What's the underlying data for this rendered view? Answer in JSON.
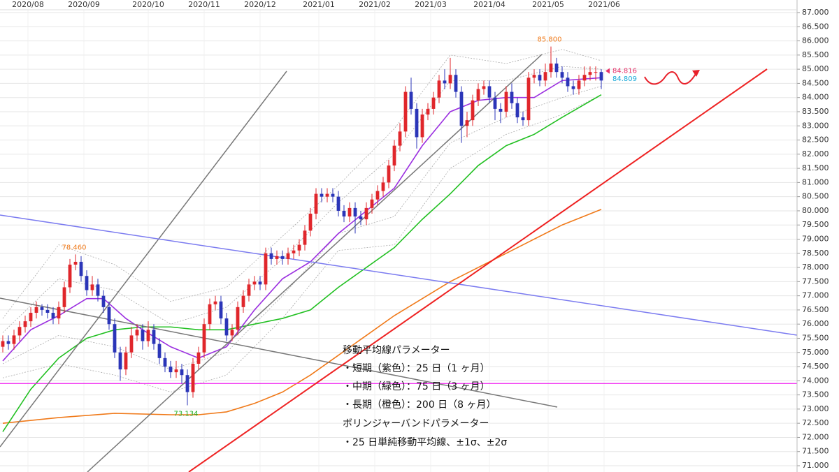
{
  "chart_data": {
    "type": "candlestick",
    "xlim": [
      -0.5,
      142
    ],
    "ylim": [
      71,
      87
    ],
    "xticks": [
      {
        "value": 4.5,
        "label": "2020/08"
      },
      {
        "value": 14.5,
        "label": "2020/09"
      },
      {
        "value": 26,
        "label": "2020/10"
      },
      {
        "value": 36,
        "label": "2020/11"
      },
      {
        "value": 46,
        "label": "2020/12"
      },
      {
        "value": 56.5,
        "label": "2021/01"
      },
      {
        "value": 66.5,
        "label": "2021/02"
      },
      {
        "value": 76.5,
        "label": "2021/03"
      },
      {
        "value": 87,
        "label": "2021/04"
      },
      {
        "value": 97.5,
        "label": "2021/05"
      },
      {
        "value": 107.5,
        "label": "2021/06"
      }
    ],
    "yticks": [
      {
        "value": 71,
        "label": "71.000"
      },
      {
        "value": 71.5,
        "label": "71.500"
      },
      {
        "value": 72,
        "label": "72.000"
      },
      {
        "value": 72.5,
        "label": "72.500"
      },
      {
        "value": 73,
        "label": "73.000"
      },
      {
        "value": 73.5,
        "label": "73.500"
      },
      {
        "value": 74,
        "label": "74.000"
      },
      {
        "value": 74.5,
        "label": "74.500"
      },
      {
        "value": 75,
        "label": "75.000"
      },
      {
        "value": 75.5,
        "label": "75.500"
      },
      {
        "value": 76,
        "label": "76.000"
      },
      {
        "value": 76.5,
        "label": "76.500"
      },
      {
        "value": 77,
        "label": "77.000"
      },
      {
        "value": 77.5,
        "label": "77.500"
      },
      {
        "value": 78,
        "label": "78.000"
      },
      {
        "value": 78.5,
        "label": "78.500"
      },
      {
        "value": 79,
        "label": "79.000"
      },
      {
        "value": 79.5,
        "label": "79.500"
      },
      {
        "value": 80,
        "label": "80.000"
      },
      {
        "value": 80.5,
        "label": "80.500"
      },
      {
        "value": 81,
        "label": "81.000"
      },
      {
        "value": 81.5,
        "label": "81.500"
      },
      {
        "value": 82,
        "label": "82.000"
      },
      {
        "value": 82.5,
        "label": "82.500"
      },
      {
        "value": 83,
        "label": "83.000"
      },
      {
        "value": 83.5,
        "label": "83.500"
      },
      {
        "value": 84,
        "label": "84.000"
      },
      {
        "value": 84.5,
        "label": "84.500"
      },
      {
        "value": 85,
        "label": "85.000"
      },
      {
        "value": 85.5,
        "label": "85.500"
      },
      {
        "value": 86,
        "label": "86.000"
      },
      {
        "value": 86.5,
        "label": "86.500"
      },
      {
        "value": 87,
        "label": "87.000"
      }
    ],
    "grid": true,
    "up_color": "#e0262b",
    "down_color": "#2b35b8",
    "open": [
      75.2,
      75.4,
      75.3,
      75.6,
      75.9,
      76.1,
      76.4,
      76.6,
      76.5,
      76.4,
      76.2,
      76.6,
      77.3,
      78.1,
      78.2,
      77.7,
      77.2,
      77.4,
      77.0,
      76.6,
      76.0,
      75.0,
      74.4,
      75.0,
      75.6,
      75.8,
      75.4,
      75.8,
      75.3,
      74.8,
      74.5,
      74.3,
      74.4,
      74.2,
      73.6,
      74.6,
      75.0,
      76.0,
      76.7,
      76.8,
      76.2,
      75.6,
      75.8,
      76.6,
      77.0,
      77.4,
      77.5,
      77.4,
      78.5,
      78.3,
      78.4,
      78.3,
      78.5,
      78.6,
      78.8,
      79.3,
      79.9,
      80.6,
      80.5,
      80.6,
      80.5,
      80.0,
      79.8,
      80.1,
      79.8,
      79.7,
      80.1,
      80.4,
      80.7,
      81.0,
      81.6,
      82.3,
      82.8,
      84.2,
      83.6,
      82.6,
      83.4,
      83.6,
      84.0,
      84.6,
      84.5,
      84.8,
      84.2,
      83.0,
      83.2,
      83.9,
      84.3,
      84.4,
      84.0,
      83.6,
      83.5,
      84.2,
      83.8,
      83.3,
      83.2,
      84.7,
      84.8,
      84.6,
      84.9,
      85.2,
      84.9,
      84.7,
      84.4,
      84.3,
      84.6,
      84.8,
      84.9,
      84.9
    ],
    "high": [
      75.6,
      75.6,
      75.8,
      76.1,
      76.3,
      76.6,
      76.8,
      76.7,
      76.7,
      76.6,
      76.8,
      77.5,
      78.3,
      78.46,
      78.4,
      77.9,
      77.7,
      77.6,
      77.2,
      76.8,
      76.2,
      75.2,
      75.2,
      75.9,
      76.0,
      76.0,
      76.1,
      76.0,
      75.5,
      75.0,
      74.7,
      74.7,
      74.6,
      74.4,
      74.8,
      75.2,
      76.2,
      76.9,
      77.0,
      77.0,
      76.4,
      76.0,
      76.8,
      77.2,
      77.6,
      77.7,
      77.7,
      78.7,
      78.7,
      78.6,
      78.6,
      78.7,
      78.8,
      79.0,
      79.5,
      80.1,
      80.8,
      80.8,
      80.8,
      80.8,
      80.7,
      80.2,
      80.3,
      80.3,
      80.0,
      80.3,
      80.6,
      80.9,
      81.2,
      81.8,
      82.5,
      83.1,
      84.4,
      84.7,
      83.8,
      83.6,
      83.8,
      84.2,
      84.8,
      85.0,
      85.4,
      85.0,
      84.4,
      83.5,
      84.1,
      84.5,
      84.6,
      84.6,
      84.2,
      83.8,
      84.4,
      84.5,
      84.0,
      83.5,
      84.9,
      85.0,
      85.0,
      85.2,
      85.8,
      85.4,
      85.1,
      84.9,
      84.6,
      84.8,
      85.1,
      85.1,
      85.1,
      85.0
    ],
    "low": [
      75.0,
      75.1,
      75.1,
      75.4,
      75.7,
      75.9,
      76.2,
      76.3,
      76.2,
      76.0,
      76.0,
      76.4,
      77.1,
      77.9,
      77.5,
      77.0,
      77.0,
      76.8,
      76.4,
      75.8,
      74.8,
      74.0,
      74.2,
      74.8,
      75.4,
      75.1,
      75.2,
      75.1,
      74.6,
      74.3,
      74.1,
      74.1,
      73.9,
      73.134,
      73.4,
      74.4,
      74.8,
      75.8,
      76.5,
      76.0,
      75.4,
      75.4,
      75.6,
      76.4,
      76.8,
      77.2,
      77.2,
      77.2,
      78.1,
      78.1,
      78.1,
      78.1,
      78.3,
      78.4,
      78.6,
      79.1,
      79.7,
      80.3,
      80.3,
      80.3,
      79.8,
      79.6,
      79.6,
      79.2,
      79.5,
      79.5,
      79.9,
      80.2,
      80.5,
      80.8,
      81.4,
      82.1,
      82.6,
      83.4,
      82.2,
      82.4,
      83.2,
      83.4,
      83.8,
      84.3,
      84.3,
      84.0,
      82.4,
      82.6,
      83.0,
      83.7,
      84.1,
      83.8,
      83.2,
      83.1,
      83.3,
      83.6,
      83.1,
      83.0,
      83.0,
      84.5,
      84.4,
      84.4,
      84.7,
      84.7,
      84.5,
      84.2,
      84.1,
      84.1,
      84.4,
      84.6,
      84.6,
      84.3
    ],
    "close": [
      75.4,
      75.3,
      75.6,
      75.9,
      76.1,
      76.4,
      76.6,
      76.5,
      76.4,
      76.2,
      76.6,
      77.3,
      78.1,
      78.2,
      77.7,
      77.2,
      77.4,
      77.0,
      76.6,
      76.0,
      75.0,
      74.4,
      75.0,
      75.6,
      75.8,
      75.4,
      75.8,
      75.3,
      74.8,
      74.5,
      74.3,
      74.4,
      74.2,
      73.6,
      74.6,
      75.0,
      76.0,
      76.7,
      76.8,
      76.2,
      75.6,
      75.8,
      76.6,
      77.0,
      77.4,
      77.5,
      77.4,
      78.5,
      78.3,
      78.4,
      78.3,
      78.5,
      78.6,
      78.8,
      79.3,
      79.9,
      80.6,
      80.5,
      80.6,
      80.5,
      80.0,
      79.8,
      80.1,
      79.8,
      79.7,
      80.1,
      80.4,
      80.7,
      81.0,
      81.6,
      82.3,
      82.8,
      84.2,
      83.6,
      82.6,
      83.4,
      83.6,
      84.0,
      84.6,
      84.5,
      84.8,
      84.2,
      83.0,
      83.2,
      83.9,
      84.3,
      84.4,
      84.0,
      83.6,
      83.5,
      84.2,
      83.8,
      83.3,
      83.2,
      84.7,
      84.8,
      84.6,
      84.9,
      85.2,
      84.9,
      84.7,
      84.4,
      84.3,
      84.6,
      84.8,
      84.9,
      84.9,
      84.6
    ],
    "indicators": [
      {
        "color": "#aaaaaa",
        "dash": true,
        "x": [
          0,
          10,
          20,
          30,
          40,
          50,
          60,
          70,
          80,
          90,
          100,
          107
        ],
        "values": [
          76.2,
          78.8,
          78.1,
          76.8,
          77.3,
          79.1,
          80.9,
          82.9,
          85.5,
          85.2,
          85.7,
          85.3
        ]
      },
      {
        "color": "#aaaaaa",
        "dash": true,
        "x": [
          0,
          10,
          20,
          30,
          40,
          50,
          60,
          70,
          80,
          90,
          100,
          107
        ],
        "values": [
          75.7,
          77.6,
          77.2,
          76.0,
          76.6,
          78.3,
          80.3,
          82.0,
          84.6,
          84.6,
          85.1,
          85.0
        ]
      },
      {
        "color": "#aaaaaa",
        "dash": true,
        "x": [
          0,
          10,
          20,
          30,
          40,
          50,
          60,
          70,
          80,
          90,
          100,
          107
        ],
        "values": [
          74.6,
          75.6,
          75.2,
          74.4,
          75.0,
          77.0,
          79.2,
          79.8,
          82.4,
          83.3,
          84.0,
          84.4
        ]
      },
      {
        "color": "#aaaaaa",
        "dash": true,
        "x": [
          0,
          10,
          20,
          30,
          40,
          50,
          60,
          70,
          80,
          90,
          100,
          107
        ],
        "values": [
          74.1,
          74.6,
          74.2,
          73.6,
          74.2,
          76.2,
          78.6,
          78.8,
          81.5,
          82.7,
          83.4,
          84.1
        ]
      },
      {
        "color": "#f07a1a",
        "dash": false,
        "x": [
          0,
          10,
          20,
          30,
          35,
          40,
          45,
          50,
          55,
          60,
          65,
          70,
          75,
          80,
          85,
          90,
          95,
          100,
          107
        ],
        "values": [
          72.5,
          72.7,
          72.85,
          72.8,
          72.8,
          72.9,
          73.2,
          73.6,
          74.2,
          74.9,
          75.6,
          76.3,
          76.9,
          77.5,
          78.0,
          78.5,
          79.0,
          79.5,
          80.05
        ]
      },
      {
        "color": "#22c022",
        "dash": false,
        "x": [
          0,
          5,
          10,
          15,
          20,
          25,
          30,
          35,
          40,
          45,
          50,
          55,
          60,
          65,
          70,
          75,
          80,
          85,
          90,
          95,
          100,
          107
        ],
        "values": [
          72.2,
          73.7,
          74.8,
          75.5,
          75.8,
          75.9,
          75.9,
          75.8,
          75.8,
          76.0,
          76.2,
          76.5,
          77.3,
          78.0,
          78.7,
          79.7,
          80.6,
          81.6,
          82.3,
          82.7,
          83.3,
          84.1
        ]
      },
      {
        "color": "#9b2fe0",
        "dash": false,
        "x": [
          0,
          5,
          10,
          15,
          18,
          22,
          25,
          30,
          35,
          40,
          45,
          50,
          55,
          60,
          65,
          70,
          75,
          80,
          85,
          90,
          95,
          100,
          107
        ],
        "values": [
          74.7,
          75.8,
          76.3,
          76.9,
          76.9,
          76.2,
          75.8,
          75.2,
          74.8,
          75.2,
          76.5,
          77.6,
          78.2,
          79.2,
          80.0,
          80.8,
          82.3,
          83.5,
          83.9,
          84.0,
          84.0,
          84.6,
          84.7
        ]
      }
    ],
    "hline": {
      "value": 73.903,
      "color": "#f020f0"
    },
    "extremes": [
      {
        "x": 13,
        "value": 78.46,
        "label": "78.460",
        "color": "#f07a1a"
      },
      {
        "x": 33,
        "value": 73.134,
        "label": "73.134",
        "color": "#22b022"
      },
      {
        "x": 98,
        "value": 85.8,
        "label": "85.800",
        "color": "#f07a1a"
      }
    ],
    "last_prices": [
      {
        "value": 84.816,
        "label": "84.816",
        "color": "#e8336b"
      },
      {
        "value": 84.809,
        "label": "84.809",
        "color": "#19a9d8"
      }
    ],
    "annotations": [
      "移動平均線パラメーター",
      "・短期（紫色）：25 日（1 ヶ月）",
      "・中期（緑色）：75 日（3 ヶ月）",
      "・長期（橙色）：200 日（8 ヶ月）",
      "ボリンジャーバンドパラメーター",
      "・25 日単純移動平均線、±1σ、±2σ"
    ]
  }
}
